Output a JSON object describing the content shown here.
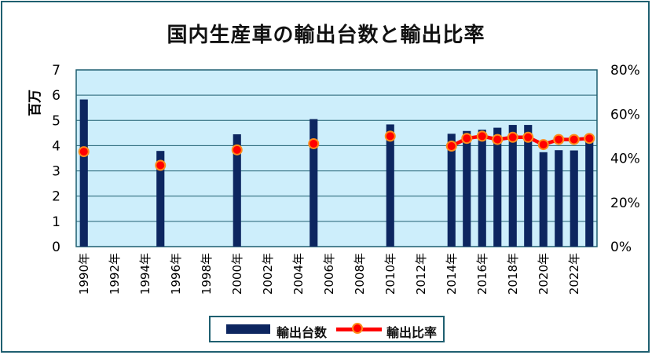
{
  "chart_data": {
    "type": "bar",
    "title": "国内生産車の輸出台数と輸出比率",
    "ylabel": "百万",
    "ylim": [
      0,
      7
    ],
    "y2lim": [
      0,
      80
    ],
    "yticks": [
      "0",
      "1",
      "2",
      "3",
      "4",
      "5",
      "6",
      "7"
    ],
    "y2ticks": [
      "0%",
      "20%",
      "40%",
      "60%",
      "80%"
    ],
    "categories": [
      "1990年",
      "1991年",
      "1992年",
      "1993年",
      "1994年",
      "1995年",
      "1996年",
      "1997年",
      "1998年",
      "1999年",
      "2000年",
      "2001年",
      "2002年",
      "2003年",
      "2004年",
      "2005年",
      "2006年",
      "2007年",
      "2008年",
      "2009年",
      "2010年",
      "2011年",
      "2012年",
      "2013年",
      "2014年",
      "2015年",
      "2016年",
      "2017年",
      "2018年",
      "2019年",
      "2020年",
      "2021年",
      "2022年",
      "2023年"
    ],
    "xtick_labels": [
      "1990年",
      "1992年",
      "1994年",
      "1996年",
      "1998年",
      "2000年",
      "2002年",
      "2004年",
      "2006年",
      "2008年",
      "2010年",
      "2012年",
      "2014年",
      "2016年",
      "2018年",
      "2020年",
      "2022年"
    ],
    "series": [
      {
        "name": "輸出台数",
        "type": "bar",
        "axis": "left",
        "color": "#0d2660",
        "values": [
          5.83,
          null,
          null,
          null,
          null,
          3.79,
          null,
          null,
          null,
          null,
          4.45,
          null,
          null,
          null,
          null,
          5.05,
          null,
          null,
          null,
          null,
          4.84,
          null,
          null,
          null,
          4.47,
          4.58,
          4.63,
          4.71,
          4.82,
          4.82,
          3.74,
          3.82,
          3.81,
          4.42
        ]
      },
      {
        "name": "輸出比率",
        "type": "line",
        "axis": "right",
        "color": "#ff0000",
        "unit": "%",
        "values": [
          43.0,
          null,
          null,
          null,
          null,
          36.8,
          null,
          null,
          null,
          null,
          43.8,
          null,
          null,
          null,
          null,
          46.6,
          null,
          null,
          null,
          null,
          50.0,
          null,
          null,
          null,
          45.5,
          49.0,
          50.0,
          48.5,
          49.5,
          49.5,
          46.2,
          48.5,
          48.5,
          49.0
        ]
      }
    ],
    "colors": {
      "plot_background": "#cdeefb",
      "grid": "#1f5f70",
      "bar": "#0d2660",
      "line": "#ff0000",
      "marker_edge": "#ff8c1a"
    },
    "legend_position": "bottom"
  }
}
